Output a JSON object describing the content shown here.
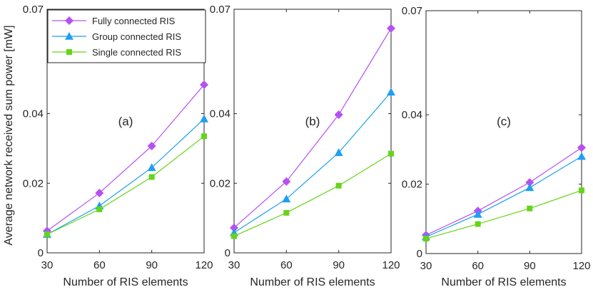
{
  "figure": {
    "ylabel": "Average network received sum power [mW]"
  },
  "legend": {
    "entries": [
      "Fully connected RIS",
      "Group connected RIS",
      "Single connected RIS"
    ],
    "placement": "top-left of panel (a)"
  },
  "chart_data": [
    {
      "type": "line",
      "panel_label": "(a)",
      "xlabel": "Number of RIS elements",
      "ylabel": "Average network received sum power [mW]",
      "x": [
        30,
        60,
        90,
        120
      ],
      "xlim": [
        30,
        120
      ],
      "ylim": [
        0,
        0.07
      ],
      "xticks": [
        "30",
        "60",
        "90",
        "120"
      ],
      "yticks": [
        {
          "value": 0,
          "label": "0"
        },
        {
          "value": 0.02,
          "label": "0.02"
        },
        {
          "value": 0.04,
          "label": "0.04"
        },
        {
          "value": 0.07,
          "label": "0.07"
        }
      ],
      "grid": false,
      "legend": "top-left",
      "series": [
        {
          "name": "Fully connected RIS",
          "color": "#B650F2",
          "marker": "diamond",
          "values": [
            0.0063,
            0.0172,
            0.0307,
            0.0483
          ]
        },
        {
          "name": "Group connected RIS",
          "color": "#1E9FF2",
          "marker": "triangle",
          "values": [
            0.0053,
            0.0135,
            0.0245,
            0.0385
          ]
        },
        {
          "name": "Single connected RIS",
          "color": "#66D41A",
          "marker": "square",
          "values": [
            0.0053,
            0.0125,
            0.0218,
            0.0335
          ]
        }
      ]
    },
    {
      "type": "line",
      "panel_label": "(b)",
      "xlabel": "Number of RIS elements",
      "ylabel": "",
      "x": [
        30,
        60,
        90,
        120
      ],
      "xlim": [
        30,
        120
      ],
      "ylim": [
        0,
        0.07
      ],
      "xticks": [
        "30",
        "60",
        "90",
        "120"
      ],
      "yticks": [
        {
          "value": 0,
          "label": "0"
        },
        {
          "value": 0.02,
          "label": "0.02"
        },
        {
          "value": 0.04,
          "label": "0.04"
        },
        {
          "value": 0.07,
          "label": "0.07"
        }
      ],
      "grid": false,
      "legend": "none",
      "series": [
        {
          "name": "Fully connected RIS",
          "color": "#B650F2",
          "marker": "diamond",
          "values": [
            0.0072,
            0.0205,
            0.0397,
            0.0645
          ]
        },
        {
          "name": "Group connected RIS",
          "color": "#1E9FF2",
          "marker": "triangle",
          "values": [
            0.0058,
            0.0155,
            0.0288,
            0.0462
          ]
        },
        {
          "name": "Single connected RIS",
          "color": "#66D41A",
          "marker": "square",
          "values": [
            0.0048,
            0.0115,
            0.0193,
            0.0285
          ]
        }
      ]
    },
    {
      "type": "line",
      "panel_label": "(c)",
      "xlabel": "Number of RIS elements",
      "ylabel": "",
      "x": [
        30,
        60,
        90,
        120
      ],
      "xlim": [
        30,
        120
      ],
      "ylim": [
        0,
        0.07
      ],
      "xticks": [
        "30",
        "60",
        "90",
        "120"
      ],
      "yticks": [
        {
          "value": 0,
          "label": "0"
        },
        {
          "value": 0.02,
          "label": "0.02"
        },
        {
          "value": 0.04,
          "label": "0.04"
        },
        {
          "value": 0.07,
          "label": "0.07"
        }
      ],
      "grid": false,
      "legend": "none",
      "series": [
        {
          "name": "Fully connected RIS",
          "color": "#B650F2",
          "marker": "diamond",
          "values": [
            0.0053,
            0.0123,
            0.0205,
            0.0305
          ]
        },
        {
          "name": "Group connected RIS",
          "color": "#1E9FF2",
          "marker": "triangle",
          "values": [
            0.0048,
            0.0113,
            0.019,
            0.028
          ]
        },
        {
          "name": "Single connected RIS",
          "color": "#66D41A",
          "marker": "square",
          "values": [
            0.0043,
            0.0085,
            0.013,
            0.0182
          ]
        }
      ]
    }
  ]
}
